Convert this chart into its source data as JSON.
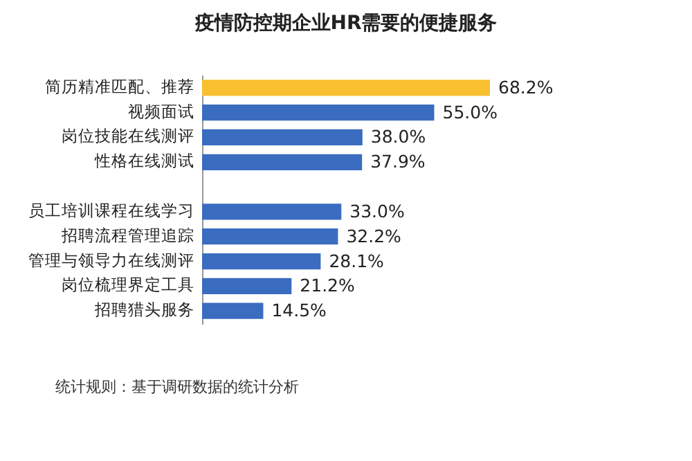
{
  "chart_data": {
    "type": "bar",
    "orientation": "horizontal",
    "title": "疫情防控期企业HR需要的便捷服务",
    "categories": [
      "简历精准匹配、推荐",
      "视频面试",
      "岗位技能在线测评",
      "性格在线测试",
      null,
      "员工培训课程在线学习",
      "招聘流程管理追踪",
      "管理与领导力在线测评",
      "岗位梳理界定工具",
      "招聘猎头服务"
    ],
    "values": [
      68.2,
      55.0,
      38.0,
      37.9,
      null,
      33.0,
      32.2,
      28.1,
      21.2,
      14.5
    ],
    "value_labels": [
      "68.2%",
      "55.0%",
      "38.0%",
      "37.9%",
      null,
      "33.0%",
      "32.2%",
      "28.1%",
      "21.2%",
      "14.5%"
    ],
    "colors": [
      "#f8bf2e",
      "#3a6cc0",
      "#3a6cc0",
      "#3a6cc0",
      "#3a6cc0",
      "#3a6cc0",
      "#3a6cc0",
      "#3a6cc0",
      "#3a6cc0",
      "#3a6cc0"
    ],
    "annotations": [
      "统计规则：基于调研数据的统计分析"
    ]
  }
}
